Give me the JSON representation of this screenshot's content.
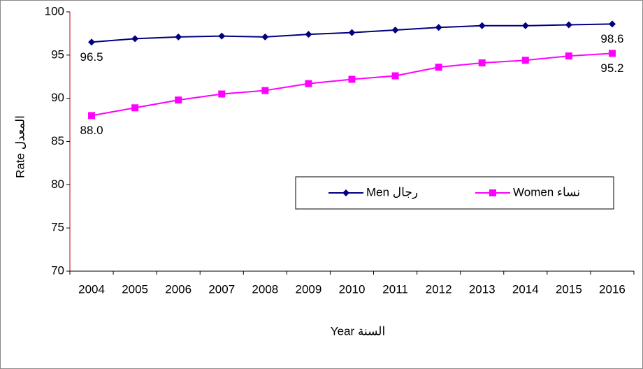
{
  "chart_data": {
    "type": "line",
    "x_label": "Year السنة",
    "y_label": "Rate المعدل",
    "categories": [
      "2004",
      "2005",
      "2006",
      "2007",
      "2008",
      "2009",
      "2010",
      "2011",
      "2012",
      "2013",
      "2014",
      "2015",
      "2016"
    ],
    "series": [
      {
        "name": "Men رجال",
        "color": "#000080",
        "marker": "diamond",
        "values": [
          96.5,
          96.9,
          97.1,
          97.2,
          97.1,
          97.4,
          97.6,
          97.9,
          98.2,
          98.4,
          98.4,
          98.5,
          98.6
        ],
        "value_labels": [
          "96.5",
          null,
          null,
          null,
          null,
          null,
          null,
          null,
          null,
          null,
          null,
          null,
          "98.6"
        ]
      },
      {
        "name": "Women نساء",
        "color": "#ff00ff",
        "marker": "square",
        "values": [
          88.0,
          88.9,
          89.8,
          90.5,
          90.9,
          91.7,
          92.2,
          92.6,
          93.6,
          94.1,
          94.4,
          94.9,
          95.2
        ],
        "value_labels": [
          "88.0",
          null,
          null,
          null,
          null,
          null,
          null,
          null,
          null,
          null,
          null,
          null,
          "95.2"
        ]
      }
    ],
    "ylim": [
      70,
      100
    ],
    "yticks": [
      70,
      75,
      80,
      85,
      90,
      95,
      100
    ],
    "grid": false,
    "legend": "right"
  }
}
